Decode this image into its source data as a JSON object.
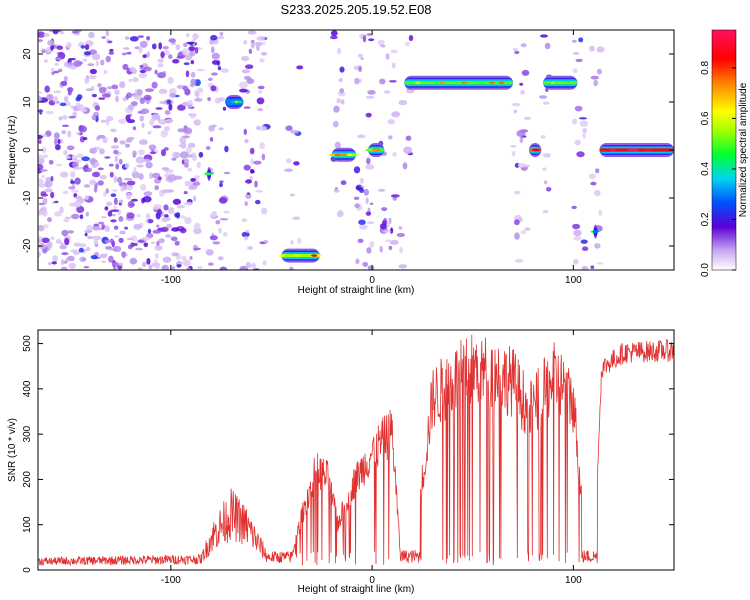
{
  "title": "S233.2025.205.19.52.E08",
  "chart_data": [
    {
      "type": "heatmap",
      "xlabel": "Height of straight line (km)",
      "ylabel": "Frequency (Hz)",
      "xlim": [
        -166,
        150
      ],
      "ylim": [
        -25,
        25
      ],
      "xticks": [
        -100,
        0,
        100
      ],
      "yticks": [
        -20,
        -10,
        0,
        10,
        20
      ],
      "colorbar": {
        "label": "Normalized spectral amplitude",
        "range": [
          0,
          0.95
        ],
        "ticks": [
          0.0,
          0.2,
          0.4,
          0.6,
          0.8
        ]
      },
      "features": [
        {
          "x_start": 16,
          "x_end": 70,
          "freq": 14,
          "amplitude": 0.5
        },
        {
          "x_start": 85,
          "x_end": 102,
          "freq": 14,
          "amplitude": 0.5
        },
        {
          "x_start": 113,
          "x_end": 150,
          "freq": 0,
          "amplitude": 0.85
        },
        {
          "x_start": -73,
          "x_end": -64,
          "freq": 10,
          "amplitude": 0.3
        },
        {
          "x_start": -20,
          "x_end": -8,
          "freq": -1,
          "amplitude": 0.5
        },
        {
          "x_start": -2,
          "x_end": 6,
          "freq": 0,
          "amplitude": 0.5
        },
        {
          "x_start": 78,
          "x_end": 84,
          "freq": 0,
          "amplitude": 0.75
        },
        {
          "x_start": -45,
          "x_end": -26,
          "freq": -22,
          "amplitude": 0.55
        },
        {
          "x_start": -82,
          "x_end": -80,
          "freq": -5,
          "amplitude": 0.2
        },
        {
          "x_start": 110,
          "x_end": 112,
          "freq": -17,
          "amplitude": 0.2
        }
      ]
    },
    {
      "type": "line",
      "xlabel": "Height of straight line (km)",
      "ylabel": "SNR (10 * v/v)",
      "xlim": [
        -166,
        150
      ],
      "ylim": [
        0,
        530
      ],
      "xticks": [
        -100,
        0,
        100
      ],
      "yticks": [
        0,
        100,
        200,
        300,
        400,
        500
      ],
      "series_color": "#e03030",
      "envelope": [
        {
          "x": -166,
          "y": 20
        },
        {
          "x": -85,
          "y": 25
        },
        {
          "x": -79,
          "y": 80
        },
        {
          "x": -70,
          "y": 130
        },
        {
          "x": -62,
          "y": 100
        },
        {
          "x": -52,
          "y": 30
        },
        {
          "x": -40,
          "y": 30
        },
        {
          "x": -36,
          "y": 110
        },
        {
          "x": -28,
          "y": 240
        },
        {
          "x": -22,
          "y": 220
        },
        {
          "x": -17,
          "y": 110
        },
        {
          "x": -10,
          "y": 200
        },
        {
          "x": 0,
          "y": 280
        },
        {
          "x": 10,
          "y": 330
        },
        {
          "x": 14,
          "y": 40
        },
        {
          "x": 20,
          "y": 60
        },
        {
          "x": 26,
          "y": 250
        },
        {
          "x": 30,
          "y": 410
        },
        {
          "x": 40,
          "y": 450
        },
        {
          "x": 50,
          "y": 480
        },
        {
          "x": 60,
          "y": 470
        },
        {
          "x": 70,
          "y": 450
        },
        {
          "x": 78,
          "y": 380
        },
        {
          "x": 85,
          "y": 420
        },
        {
          "x": 90,
          "y": 460
        },
        {
          "x": 95,
          "y": 440
        },
        {
          "x": 100,
          "y": 400
        },
        {
          "x": 106,
          "y": 80
        },
        {
          "x": 111,
          "y": 100
        },
        {
          "x": 114,
          "y": 450
        },
        {
          "x": 125,
          "y": 485
        },
        {
          "x": 150,
          "y": 490
        }
      ],
      "dropouts": [
        {
          "x_start": 14,
          "x_end": 24
        },
        {
          "x_start": 104,
          "x_end": 112
        }
      ]
    }
  ]
}
